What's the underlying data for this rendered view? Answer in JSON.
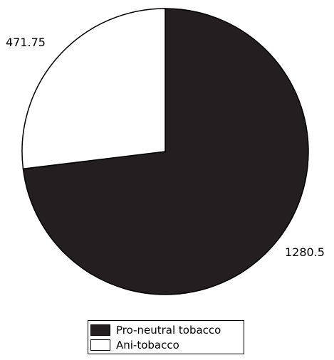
{
  "chart_data": {
    "type": "pie",
    "title": "",
    "slices": [
      {
        "label": "Pro-neutral tobacco",
        "value": 1280.5,
        "display": "1280.5",
        "color": "#231f20"
      },
      {
        "label": "Ani-tobacco",
        "value": 471.75,
        "display": "471.75",
        "color": "#ffffff"
      }
    ],
    "start_angle": "12 o'clock",
    "direction": "clockwise",
    "legend_position": "bottom-center"
  },
  "legend": {
    "items": [
      {
        "label": "Pro-neutral tobacco",
        "color": "#231f20"
      },
      {
        "label": "Ani-tobacco",
        "color": "#ffffff"
      }
    ]
  }
}
